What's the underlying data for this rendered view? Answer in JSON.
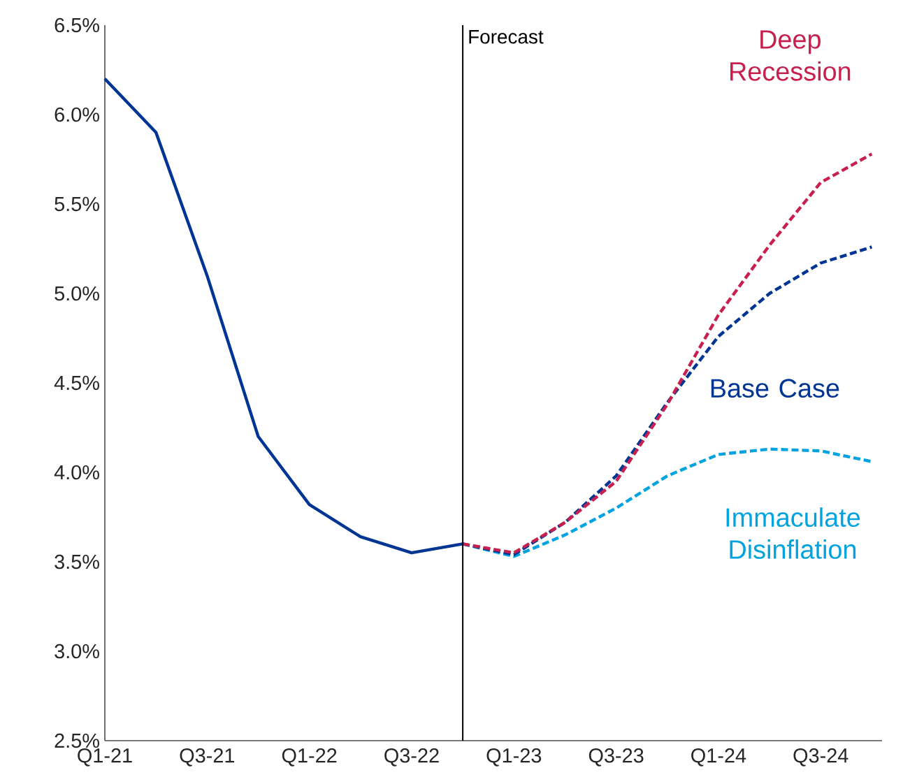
{
  "chart_data": {
    "type": "line",
    "categories": [
      "Q1-21",
      null,
      "Q3-21",
      null,
      "Q1-22",
      null,
      "Q3-22",
      null,
      "Q1-23",
      null,
      "Q3-23",
      null,
      "Q1-24",
      null,
      "Q3-24",
      null
    ],
    "series": [
      {
        "color": "#003594",
        "line_style": "solid",
        "values": [
          6.2,
          5.9,
          5.1,
          4.2,
          3.82,
          3.64,
          3.55,
          3.6,
          null,
          null,
          null,
          null,
          null,
          null,
          null,
          null
        ]
      },
      {
        "name": "Deep Recession",
        "color": "#c8204e",
        "line_style": "dashed",
        "values": [
          null,
          null,
          null,
          null,
          null,
          null,
          null,
          3.6,
          3.55,
          3.72,
          3.95,
          4.38,
          4.88,
          5.27,
          5.62,
          5.78
        ]
      },
      {
        "name": "Base Case",
        "color": "#003594",
        "line_style": "dashed",
        "values": [
          null,
          null,
          null,
          null,
          null,
          null,
          null,
          3.6,
          3.54,
          3.72,
          3.98,
          4.39,
          4.76,
          5.0,
          5.17,
          5.26
        ]
      },
      {
        "name": "Immaculate Disinflation",
        "color": "#00a3e0",
        "line_style": "dashed",
        "values": [
          null,
          null,
          null,
          null,
          null,
          null,
          null,
          3.6,
          3.53,
          3.65,
          3.8,
          3.98,
          4.1,
          4.13,
          4.12,
          4.06
        ]
      }
    ],
    "ylim": [
      2.5,
      6.5
    ],
    "yticks": [
      {
        "value": 2.5,
        "label": "2.5%"
      },
      {
        "value": 3.0,
        "label": "3.0%"
      },
      {
        "value": 3.5,
        "label": "3.5%"
      },
      {
        "value": 4.0,
        "label": "4.0%"
      },
      {
        "value": 4.5,
        "label": "4.5%"
      },
      {
        "value": 5.0,
        "label": "5.0%"
      },
      {
        "value": 5.5,
        "label": "5.5%"
      },
      {
        "value": 6.0,
        "label": "6.0%"
      },
      {
        "value": 6.5,
        "label": "6.5%"
      }
    ],
    "annotations": [
      "Forecast"
    ],
    "legend": false,
    "marker": "none"
  }
}
